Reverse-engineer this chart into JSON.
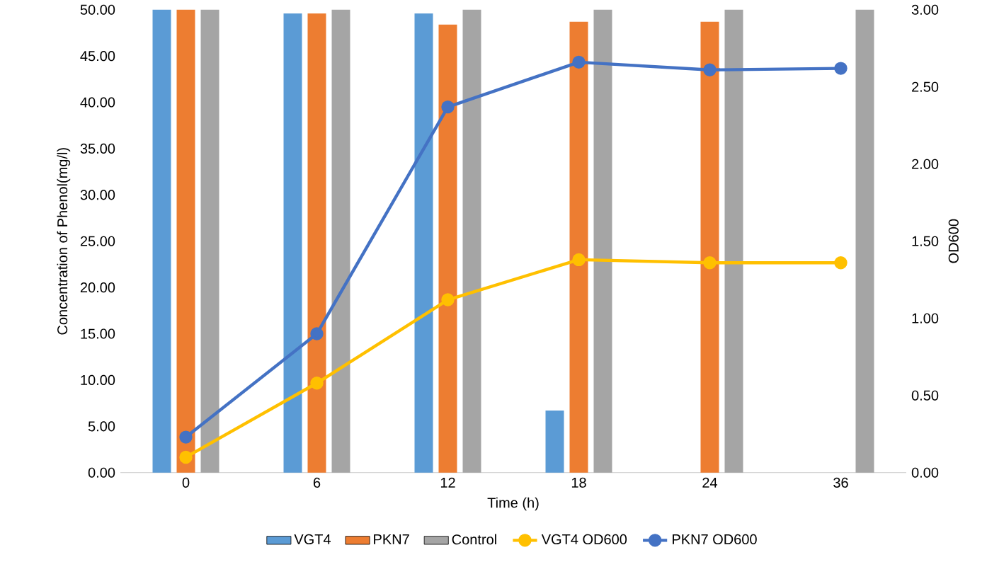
{
  "chart_data": {
    "type": "bar",
    "xlabel": "Time (h)",
    "ylabel": "Concentration of Phenol(mg/l)",
    "y2label": "OD600",
    "categories": [
      "0",
      "6",
      "12",
      "18",
      "24",
      "36"
    ],
    "series": [
      {
        "name": "VGT4",
        "color": "#5b9bd5",
        "values": [
          50,
          49.6,
          49.6,
          6.7,
          null,
          null
        ]
      },
      {
        "name": "PKN7",
        "color": "#ed7d31",
        "values": [
          50,
          49.6,
          48.4,
          48.7,
          48.7,
          null
        ]
      },
      {
        "name": "Control",
        "color": "#a5a5a5",
        "values": [
          50,
          50,
          50,
          50,
          50,
          50
        ]
      },
      {
        "name": "VGT4 OD600",
        "type": "line",
        "axis": "y2",
        "color": "#ffc000",
        "values": [
          0.1,
          0.58,
          1.12,
          1.38,
          1.36,
          1.36
        ]
      },
      {
        "name": "PKN7 OD600",
        "type": "line",
        "axis": "y2",
        "color": "#4472c4",
        "values": [
          0.23,
          0.9,
          2.37,
          2.66,
          2.61,
          2.62
        ]
      }
    ],
    "ylim": [
      0,
      50
    ],
    "yticks": [
      {
        "value": 0,
        "label": "0.00"
      },
      {
        "value": 5,
        "label": "5.00"
      },
      {
        "value": 10,
        "label": "10.00"
      },
      {
        "value": 15,
        "label": "15.00"
      },
      {
        "value": 20,
        "label": "20.00"
      },
      {
        "value": 25,
        "label": "25.00"
      },
      {
        "value": 30,
        "label": "30.00"
      },
      {
        "value": 35,
        "label": "35.00"
      },
      {
        "value": 40,
        "label": "40.00"
      },
      {
        "value": 45,
        "label": "45.00"
      },
      {
        "value": 50,
        "label": "50.00"
      }
    ],
    "y2lim": [
      0,
      3
    ],
    "y2ticks": [
      {
        "value": 0,
        "label": "0.00"
      },
      {
        "value": 0.5,
        "label": "0.50"
      },
      {
        "value": 1,
        "label": "1.00"
      },
      {
        "value": 1.5,
        "label": "1.50"
      },
      {
        "value": 2,
        "label": "2.00"
      },
      {
        "value": 2.5,
        "label": "2.50"
      },
      {
        "value": 3,
        "label": "3.00"
      }
    ],
    "legend": "bottom",
    "marker": "circle",
    "line_style": "solid",
    "grid": false
  }
}
